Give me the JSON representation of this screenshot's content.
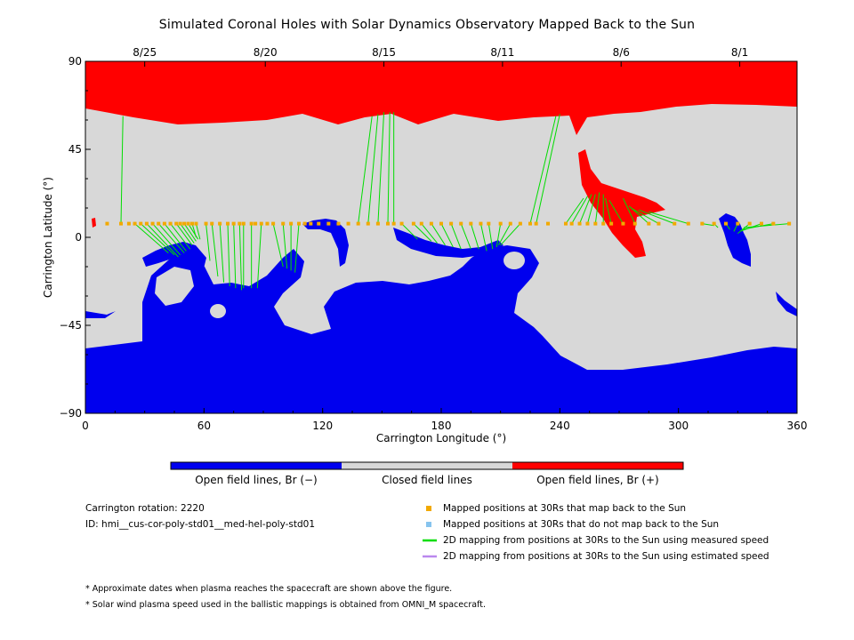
{
  "title": "Simulated Coronal Holes with Solar Dynamics Observatory Mapped Back to the Sun",
  "colors": {
    "positive": "#ff0000",
    "negative": "#0000ee",
    "closed": "#d8d8d8",
    "mapped_point": "#f2a900",
    "unmapped_point": "#87c4ee",
    "measured_line": "#00dd00",
    "estimated_line": "#bb88ee"
  },
  "chart_data": {
    "type": "map",
    "x_label": "Carrington Longitude (°)",
    "y_label": "Carrington Latitude (°)",
    "xlim": [
      0,
      360
    ],
    "ylim": [
      -90,
      90
    ],
    "x_ticks": [
      "0",
      "60",
      "120",
      "180",
      "240",
      "300",
      "360"
    ],
    "y_ticks": [
      "90",
      "45",
      "0",
      "-45",
      "-90"
    ],
    "top_axis": [
      {
        "label": "8/25",
        "lon": 30
      },
      {
        "label": "8/20",
        "lon": 91
      },
      {
        "label": "8/15",
        "lon": 151
      },
      {
        "label": "8/11",
        "lon": 211
      },
      {
        "label": "8/6",
        "lon": 271
      },
      {
        "label": "8/1",
        "lon": 331
      }
    ],
    "mapped_points_lat": 7,
    "mapped_points_lon": [
      11,
      18,
      22,
      25,
      28,
      31,
      34,
      37,
      40,
      43,
      46,
      48,
      50,
      52,
      54,
      56,
      61,
      64,
      68,
      72,
      75,
      78,
      80,
      84,
      86,
      89,
      92,
      95,
      100,
      104,
      108,
      111,
      114,
      118,
      123,
      128,
      133,
      138,
      143,
      148,
      153,
      156,
      160,
      166,
      170,
      175,
      180,
      185,
      190,
      195,
      200,
      204,
      210,
      215,
      220,
      225,
      228,
      234,
      243,
      246,
      250,
      254,
      258,
      262,
      266,
      272,
      278,
      285,
      290,
      298,
      305,
      312,
      318,
      324,
      330,
      336,
      342,
      348,
      356
    ],
    "field_lines": [
      [
        18,
        7,
        19,
        62
      ],
      [
        25,
        7,
        42,
        -8
      ],
      [
        28,
        7,
        45,
        -9
      ],
      [
        31,
        7,
        47,
        -10
      ],
      [
        34,
        7,
        48,
        -9
      ],
      [
        37,
        7,
        50,
        -8
      ],
      [
        40,
        7,
        51,
        -7
      ],
      [
        43,
        7,
        53,
        -6
      ],
      [
        46,
        7,
        54,
        -4
      ],
      [
        48,
        7,
        55,
        -3
      ],
      [
        50,
        7,
        56,
        -2
      ],
      [
        52,
        7,
        57,
        -1
      ],
      [
        54,
        7,
        56,
        0
      ],
      [
        56,
        7,
        58,
        -1
      ],
      [
        61,
        7,
        63,
        -12
      ],
      [
        64,
        7,
        67,
        -20
      ],
      [
        68,
        7,
        70,
        -23
      ],
      [
        72,
        7,
        73,
        -25
      ],
      [
        75,
        7,
        76,
        -26
      ],
      [
        78,
        7,
        79,
        -27
      ],
      [
        80,
        7,
        80,
        -26
      ],
      [
        84,
        7,
        84,
        -26
      ],
      [
        89,
        7,
        87,
        -26
      ],
      [
        95,
        7,
        100,
        -15
      ],
      [
        100,
        7,
        102,
        -16
      ],
      [
        104,
        7,
        104,
        -17
      ],
      [
        108,
        7,
        106,
        -18
      ],
      [
        138,
        7,
        145,
        62
      ],
      [
        143,
        7,
        148,
        63
      ],
      [
        148,
        7,
        151,
        64
      ],
      [
        153,
        7,
        154,
        64
      ],
      [
        156,
        7,
        156,
        64
      ],
      [
        160,
        7,
        168,
        -1
      ],
      [
        166,
        7,
        175,
        -2
      ],
      [
        170,
        7,
        178,
        -3
      ],
      [
        175,
        7,
        182,
        -4
      ],
      [
        180,
        7,
        186,
        -5
      ],
      [
        185,
        7,
        190,
        -6
      ],
      [
        190,
        7,
        195,
        -6
      ],
      [
        195,
        7,
        199,
        -6
      ],
      [
        200,
        7,
        203,
        -7
      ],
      [
        204,
        7,
        206,
        -6
      ],
      [
        210,
        7,
        208,
        -5
      ],
      [
        215,
        7,
        209,
        -4
      ],
      [
        220,
        7,
        210,
        -4
      ],
      [
        225,
        7,
        238,
        62
      ],
      [
        228,
        7,
        240,
        63
      ],
      [
        243,
        7,
        252,
        20
      ],
      [
        246,
        7,
        254,
        21
      ],
      [
        250,
        7,
        256,
        22
      ],
      [
        254,
        7,
        258,
        22
      ],
      [
        258,
        7,
        260,
        23
      ],
      [
        262,
        7,
        262,
        22
      ],
      [
        266,
        7,
        263,
        20
      ],
      [
        272,
        7,
        265,
        19
      ],
      [
        278,
        7,
        272,
        20
      ],
      [
        285,
        7,
        275,
        16
      ],
      [
        290,
        7,
        276,
        15
      ],
      [
        298,
        7,
        280,
        14
      ],
      [
        305,
        7,
        285,
        13
      ],
      [
        312,
        7,
        318,
        6
      ],
      [
        318,
        7,
        320,
        5
      ],
      [
        324,
        7,
        326,
        4
      ],
      [
        330,
        7,
        328,
        3
      ],
      [
        336,
        7,
        330,
        2
      ],
      [
        342,
        7,
        331,
        3
      ],
      [
        348,
        7,
        332,
        4
      ],
      [
        356,
        7,
        333,
        5
      ]
    ]
  },
  "colorbar": {
    "negative_label": "Open field lines, Br (−)",
    "closed_label": "Closed field lines",
    "positive_label": "Open field lines, Br (+)"
  },
  "info": {
    "rotation": "Carrington rotation: 2220",
    "id": "ID: hmi__cus-cor-poly-std01__med-hel-poly-std01"
  },
  "legend": [
    {
      "kind": "square",
      "color": "#f2a900",
      "label": "Mapped positions at 30Rs that map back to the Sun"
    },
    {
      "kind": "square",
      "color": "#87c4ee",
      "label": "Mapped positions at 30Rs that do not map back to the Sun"
    },
    {
      "kind": "line",
      "color": "#00dd00",
      "label": "2D mapping from positions at 30Rs to the Sun using measured speed"
    },
    {
      "kind": "line",
      "color": "#bb88ee",
      "label": "2D mapping from positions at 30Rs to the Sun using estimated speed"
    }
  ],
  "notes": [
    "* Approximate dates when plasma reaches the spacecraft are shown above the figure.",
    "* Solar wind plasma speed used in the ballistic mappings is obtained from OMNI_M spacecraft."
  ]
}
